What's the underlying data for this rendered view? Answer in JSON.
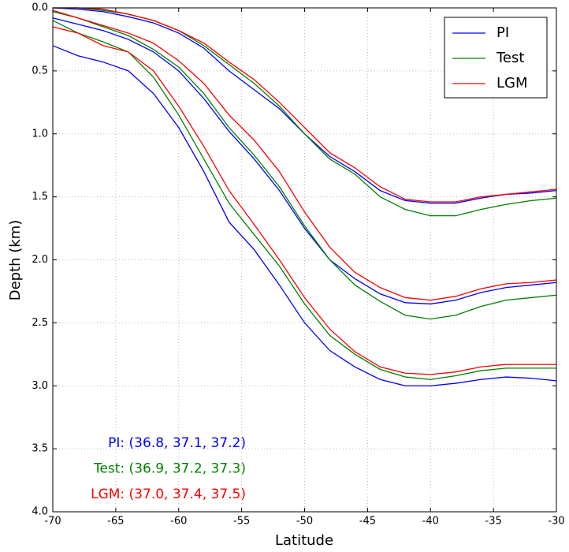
{
  "chart_data": {
    "type": "line",
    "x_label": "Latitude",
    "y_label": "Depth (km)",
    "x": [
      -70,
      -68,
      -66,
      -64,
      -62,
      -60,
      -58,
      -56,
      -54,
      -52,
      -50,
      -48,
      -46,
      -44,
      -42,
      -40,
      -38,
      -36,
      -34,
      -32,
      -30
    ],
    "series": [
      {
        "name": "PI",
        "color": "#0000ff",
        "values": [
          [
            0.0,
            0.01,
            0.03,
            0.07,
            0.12,
            0.2,
            0.32,
            0.5,
            0.65,
            0.8,
            1.0,
            1.18,
            1.3,
            1.45,
            1.53,
            1.55,
            1.55,
            1.51,
            1.48,
            1.47,
            1.45
          ],
          [
            0.08,
            0.13,
            0.18,
            0.25,
            0.35,
            0.5,
            0.72,
            0.98,
            1.2,
            1.45,
            1.75,
            2.0,
            2.15,
            2.27,
            2.34,
            2.35,
            2.32,
            2.26,
            2.22,
            2.2,
            2.18
          ],
          [
            0.3,
            0.38,
            0.43,
            0.5,
            0.68,
            0.95,
            1.3,
            1.7,
            1.92,
            2.2,
            2.5,
            2.72,
            2.85,
            2.95,
            3.0,
            3.0,
            2.98,
            2.95,
            2.93,
            2.94,
            2.96
          ]
        ]
      },
      {
        "name": "Test",
        "color": "#008000",
        "values": [
          [
            0.0,
            0.0,
            0.02,
            0.05,
            0.1,
            0.18,
            0.3,
            0.45,
            0.6,
            0.78,
            1.0,
            1.2,
            1.32,
            1.5,
            1.6,
            1.65,
            1.65,
            1.6,
            1.56,
            1.53,
            1.51
          ],
          [
            0.03,
            0.08,
            0.15,
            0.22,
            0.33,
            0.47,
            0.68,
            0.95,
            1.17,
            1.42,
            1.73,
            2.0,
            2.2,
            2.33,
            2.44,
            2.47,
            2.44,
            2.37,
            2.32,
            2.3,
            2.28
          ],
          [
            0.1,
            0.2,
            0.27,
            0.35,
            0.55,
            0.85,
            1.2,
            1.55,
            1.8,
            2.05,
            2.35,
            2.6,
            2.75,
            2.87,
            2.93,
            2.95,
            2.92,
            2.88,
            2.86,
            2.86,
            2.86
          ]
        ]
      },
      {
        "name": "LGM",
        "color": "#ff0000",
        "values": [
          [
            0.0,
            0.0,
            0.01,
            0.05,
            0.1,
            0.18,
            0.28,
            0.43,
            0.57,
            0.75,
            0.95,
            1.15,
            1.27,
            1.42,
            1.52,
            1.54,
            1.54,
            1.5,
            1.48,
            1.46,
            1.44
          ],
          [
            0.02,
            0.08,
            0.14,
            0.2,
            0.28,
            0.42,
            0.6,
            0.85,
            1.05,
            1.3,
            1.62,
            1.9,
            2.1,
            2.22,
            2.3,
            2.32,
            2.29,
            2.23,
            2.19,
            2.18,
            2.16
          ],
          [
            0.15,
            0.2,
            0.3,
            0.35,
            0.5,
            0.78,
            1.1,
            1.45,
            1.72,
            2.0,
            2.3,
            2.55,
            2.73,
            2.85,
            2.9,
            2.91,
            2.89,
            2.85,
            2.83,
            2.83,
            2.83
          ]
        ]
      }
    ],
    "xlim": [
      -70,
      -30
    ],
    "xticks": [
      -70,
      -65,
      -60,
      -55,
      -50,
      -45,
      -40,
      -35,
      -30
    ],
    "ylim": [
      4.0,
      0.0
    ],
    "yticks": [
      {
        "value": 0,
        "label": "0.0"
      },
      {
        "value": 0.5,
        "label": "0.5"
      },
      {
        "value": 1,
        "label": "1.0"
      },
      {
        "value": 1.5,
        "label": "1.5"
      },
      {
        "value": 2,
        "label": "2.0"
      },
      {
        "value": 2.5,
        "label": "2.5"
      },
      {
        "value": 3,
        "label": "3.0"
      },
      {
        "value": 3.5,
        "label": "3.5"
      },
      {
        "value": 4,
        "label": "4.0"
      }
    ],
    "grid": true,
    "legend": "upper right",
    "annotations": [
      {
        "text": "PI: (36.8, 37.1, 37.2)",
        "color": "#0000ff"
      },
      {
        "text": "Test: (36.9, 37.2, 37.3)",
        "color": "#008000"
      },
      {
        "text": "LGM: (37.0, 37.4, 37.5)",
        "color": "#ff0000"
      }
    ]
  }
}
